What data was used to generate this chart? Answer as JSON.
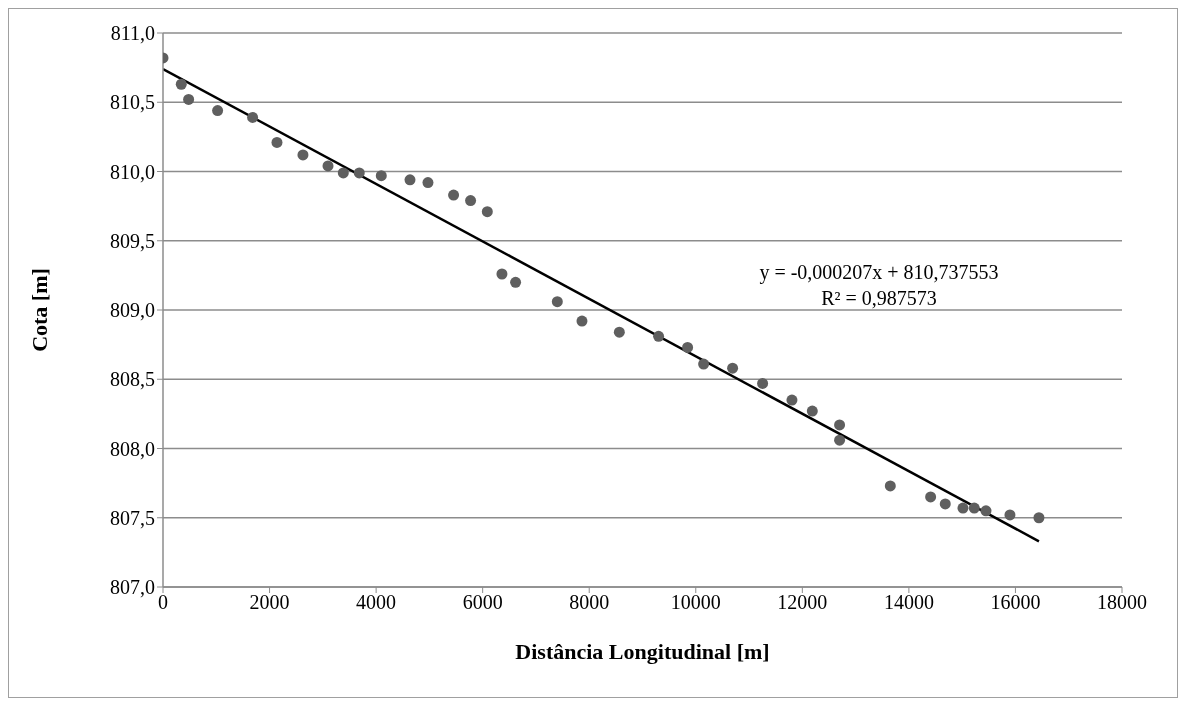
{
  "chart_data": {
    "type": "scatter",
    "xlabel": "Distância Longitudinal [m]",
    "ylabel": "Cota [m]",
    "xlim": [
      0,
      18000
    ],
    "xticks": [
      0,
      2000,
      4000,
      6000,
      8000,
      10000,
      12000,
      14000,
      16000,
      18000
    ],
    "ylim": [
      807,
      811
    ],
    "yticks": [
      {
        "value": 807,
        "label": "807,0"
      },
      {
        "value": 807.5,
        "label": "807,5"
      },
      {
        "value": 808,
        "label": "808,0"
      },
      {
        "value": 808.5,
        "label": "808,5"
      },
      {
        "value": 809,
        "label": "809,0"
      },
      {
        "value": 809.5,
        "label": "809,5"
      },
      {
        "value": 810,
        "label": "810,0"
      },
      {
        "value": 810.5,
        "label": "810,5"
      },
      {
        "value": 811,
        "label": "811,0"
      }
    ],
    "grid": "y",
    "marker": "circle",
    "annotations": [
      "y = -0,000207x + 810,737553",
      "R² = 0,987573"
    ],
    "series": [
      {
        "color": "#5f5f5f",
        "x": [
          0,
          343,
          481,
          1025,
          1682,
          2139,
          2627,
          3097,
          3384,
          3684,
          4097,
          4636,
          4973,
          5454,
          5773,
          6087,
          6362,
          6618,
          7401,
          7864,
          8565,
          9302,
          9846,
          10147,
          10691,
          11254,
          11805,
          12187,
          12699,
          12699,
          13651,
          14408,
          14683,
          15015,
          15227,
          15447,
          15897,
          16441
        ],
        "values": [
          810.82,
          810.63,
          810.52,
          810.44,
          810.39,
          810.21,
          810.12,
          810.04,
          809.99,
          809.99,
          809.97,
          809.94,
          809.92,
          809.83,
          809.79,
          809.71,
          809.26,
          809.2,
          809.06,
          808.92,
          808.84,
          808.81,
          808.73,
          808.61,
          808.58,
          808.47,
          808.35,
          808.27,
          808.17,
          808.06,
          807.73,
          807.65,
          807.6,
          807.57,
          807.57,
          807.55,
          807.52,
          807.5
        ]
      },
      {
        "type": "line",
        "color": "#000000",
        "marker": "none",
        "line_style": "solid",
        "x": [
          0,
          16441
        ],
        "values": [
          810.74,
          807.33
        ]
      }
    ]
  }
}
